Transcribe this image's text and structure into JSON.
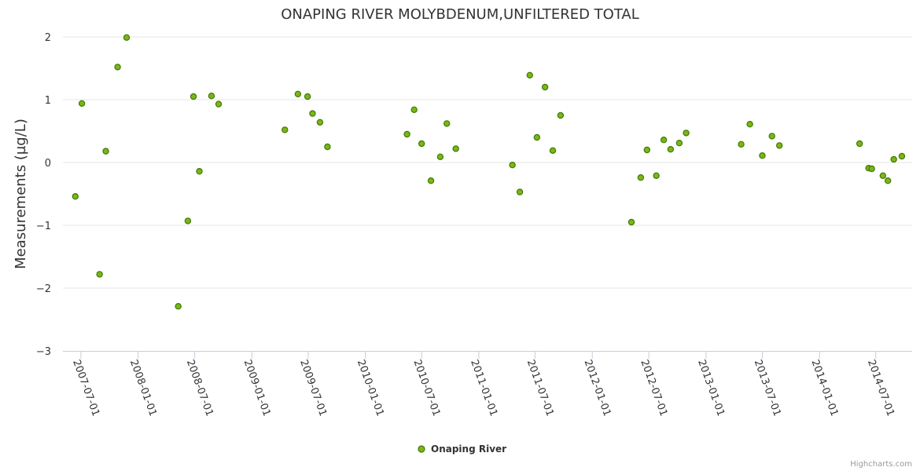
{
  "chart_data": {
    "type": "scatter",
    "title": "ONAPING RIVER MOLYBDENUM,UNFILTERED TOTAL",
    "ylabel": "Measurements (µg/L)",
    "xlabel": "",
    "ylim": [
      -3,
      2
    ],
    "yticks": [
      2,
      1,
      0,
      -1,
      -2,
      -3
    ],
    "ytick_labels": [
      "2",
      "1",
      "0",
      "−1",
      "−2",
      "−3"
    ],
    "xlim": [
      "2007-05-04",
      "2014-10-26"
    ],
    "xticks": [
      "2007-07-01",
      "2008-01-01",
      "2008-07-01",
      "2009-01-01",
      "2009-07-01",
      "2010-01-01",
      "2010-07-01",
      "2011-01-01",
      "2011-07-01",
      "2012-01-01",
      "2012-07-01",
      "2013-01-01",
      "2013-07-01",
      "2014-01-01",
      "2014-07-01"
    ],
    "grid": true,
    "legend_position": "bottom-center",
    "color": "#7cb518",
    "series": [
      {
        "name": "Onaping River",
        "points": [
          {
            "x": "2007-06-13",
            "y": -0.54
          },
          {
            "x": "2007-07-04",
            "y": 0.94
          },
          {
            "x": "2007-08-30",
            "y": -1.78
          },
          {
            "x": "2007-09-19",
            "y": 0.18
          },
          {
            "x": "2007-10-27",
            "y": 1.52
          },
          {
            "x": "2007-11-25",
            "y": 1.99
          },
          {
            "x": "2008-05-09",
            "y": -2.29
          },
          {
            "x": "2008-06-09",
            "y": -0.93
          },
          {
            "x": "2008-06-27",
            "y": 1.05
          },
          {
            "x": "2008-07-16",
            "y": -0.14
          },
          {
            "x": "2008-08-24",
            "y": 1.06
          },
          {
            "x": "2008-09-16",
            "y": 0.93
          },
          {
            "x": "2009-04-17",
            "y": 0.52
          },
          {
            "x": "2009-05-29",
            "y": 1.09
          },
          {
            "x": "2009-06-29",
            "y": 1.05
          },
          {
            "x": "2009-07-15",
            "y": 0.78
          },
          {
            "x": "2009-08-08",
            "y": 0.64
          },
          {
            "x": "2009-09-01",
            "y": 0.25
          },
          {
            "x": "2010-05-15",
            "y": 0.45
          },
          {
            "x": "2010-06-07",
            "y": 0.84
          },
          {
            "x": "2010-07-01",
            "y": 0.3
          },
          {
            "x": "2010-07-31",
            "y": -0.29
          },
          {
            "x": "2010-08-30",
            "y": 0.09
          },
          {
            "x": "2010-09-20",
            "y": 0.62
          },
          {
            "x": "2010-10-19",
            "y": 0.22
          },
          {
            "x": "2011-04-19",
            "y": -0.04
          },
          {
            "x": "2011-05-13",
            "y": -0.47
          },
          {
            "x": "2011-06-14",
            "y": 1.39
          },
          {
            "x": "2011-07-07",
            "y": 0.4
          },
          {
            "x": "2011-08-02",
            "y": 1.2
          },
          {
            "x": "2011-08-27",
            "y": 0.19
          },
          {
            "x": "2011-09-21",
            "y": 0.75
          },
          {
            "x": "2012-05-06",
            "y": -0.95
          },
          {
            "x": "2012-06-05",
            "y": -0.24
          },
          {
            "x": "2012-06-25",
            "y": 0.2
          },
          {
            "x": "2012-07-25",
            "y": -0.21
          },
          {
            "x": "2012-08-18",
            "y": 0.36
          },
          {
            "x": "2012-09-09",
            "y": 0.21
          },
          {
            "x": "2012-10-07",
            "y": 0.31
          },
          {
            "x": "2012-10-29",
            "y": 0.47
          },
          {
            "x": "2013-04-24",
            "y": 0.29
          },
          {
            "x": "2013-05-22",
            "y": 0.61
          },
          {
            "x": "2013-07-01",
            "y": 0.11
          },
          {
            "x": "2013-08-01",
            "y": 0.42
          },
          {
            "x": "2013-08-25",
            "y": 0.27
          },
          {
            "x": "2014-05-10",
            "y": 0.3
          },
          {
            "x": "2014-06-08",
            "y": -0.09
          },
          {
            "x": "2014-06-18",
            "y": -0.1
          },
          {
            "x": "2014-07-24",
            "y": -0.21
          },
          {
            "x": "2014-08-09",
            "y": -0.29
          },
          {
            "x": "2014-08-28",
            "y": 0.05
          },
          {
            "x": "2014-09-23",
            "y": 0.1
          }
        ]
      }
    ]
  },
  "legend": {
    "label": "Onaping River"
  },
  "credits": "Highcharts.com"
}
